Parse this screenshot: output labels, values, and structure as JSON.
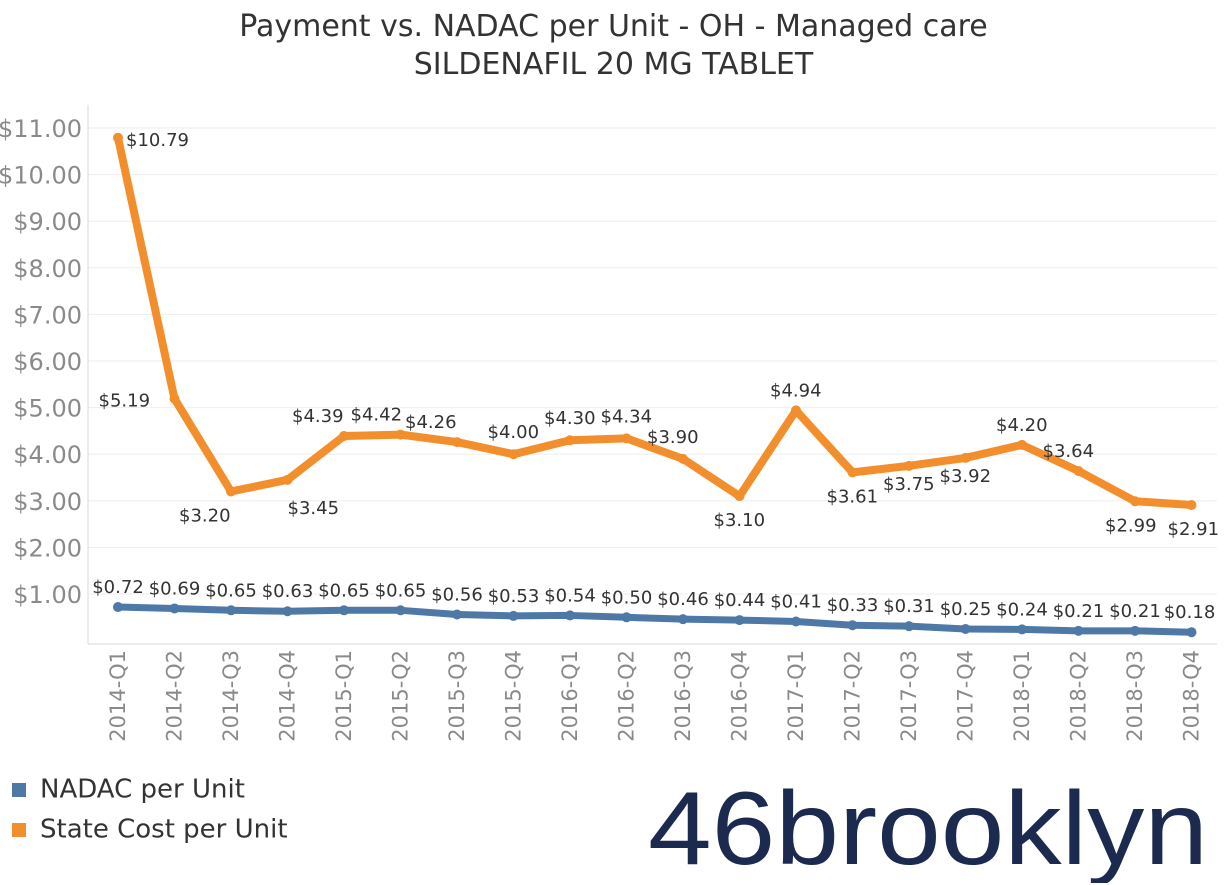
{
  "chart_data": {
    "type": "line",
    "title": "Payment vs. NADAC per Unit - OH - Managed care",
    "subtitle": "SILDENAFIL 20 MG TABLET",
    "categories": [
      "2014-Q1",
      "2014-Q2",
      "2014-Q3",
      "2014-Q4",
      "2015-Q1",
      "2015-Q2",
      "2015-Q3",
      "2015-Q4",
      "2016-Q1",
      "2016-Q2",
      "2016-Q3",
      "2016-Q4",
      "2017-Q1",
      "2017-Q2",
      "2017-Q3",
      "2017-Q4",
      "2018-Q1",
      "2018-Q2",
      "2018-Q3",
      "2018-Q4"
    ],
    "series": [
      {
        "name": "NADAC per Unit",
        "color": "#4e79a7",
        "values": [
          0.72,
          0.69,
          0.65,
          0.63,
          0.65,
          0.65,
          0.56,
          0.53,
          0.54,
          0.5,
          0.46,
          0.44,
          0.41,
          0.33,
          0.31,
          0.25,
          0.24,
          0.21,
          0.21,
          0.18
        ],
        "labels": [
          "$0.72",
          "$0.69",
          "$0.65",
          "$0.63",
          "$0.65",
          "$0.65",
          "$0.56",
          "$0.53",
          "$0.54",
          "$0.50",
          "$0.46",
          "$0.44",
          "$0.41",
          "$0.33",
          "$0.31",
          "$0.25",
          "$0.24",
          "$0.21",
          "$0.21",
          "$0.18"
        ]
      },
      {
        "name": "State Cost per Unit",
        "color": "#f28e2b",
        "values": [
          10.79,
          5.19,
          3.2,
          3.45,
          4.39,
          4.42,
          4.26,
          4.0,
          4.3,
          4.34,
          3.9,
          3.1,
          4.94,
          3.61,
          3.75,
          3.92,
          4.2,
          3.64,
          2.99,
          2.91
        ],
        "labels": [
          "$10.79",
          "$5.19",
          "$3.20",
          "$3.45",
          "$4.39",
          "$4.42",
          "$4.26",
          "$4.00",
          "$4.30",
          "$4.34",
          "$3.90",
          "$3.10",
          "$4.94",
          "$3.61",
          "$3.75",
          "$3.92",
          "$4.20",
          "$3.64",
          "$2.99",
          "$2.91"
        ]
      }
    ],
    "y_ticks": [
      "$1.00",
      "$2.00",
      "$3.00",
      "$4.00",
      "$5.00",
      "$6.00",
      "$7.00",
      "$8.00",
      "$9.00",
      "$10.00",
      "$11.00"
    ],
    "y_tick_values": [
      1,
      2,
      3,
      4,
      5,
      6,
      7,
      8,
      9,
      10,
      11
    ],
    "ylim": [
      0,
      11.4
    ],
    "xlabel": "",
    "ylabel": "",
    "grid": true,
    "legend_position": "bottom-left"
  },
  "logo": {
    "text": "46brooklyn"
  }
}
